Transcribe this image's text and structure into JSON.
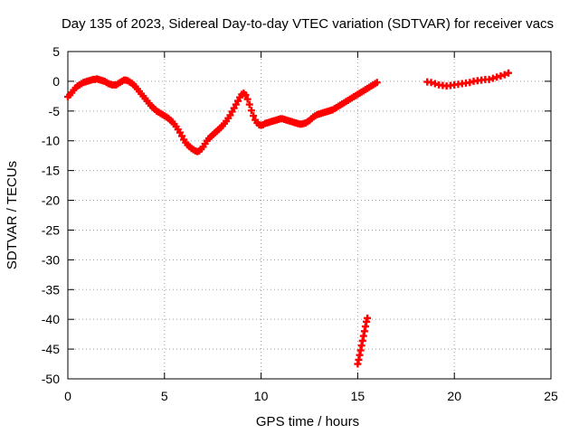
{
  "chart_data": {
    "type": "scatter",
    "title": "Day 135 of 2023, Sidereal Day-to-day VTEC variation (SDTVAR) for receiver vacs",
    "xlabel": "GPS time / hours",
    "ylabel": "SDTVAR / TECUs",
    "xlim": [
      0,
      25
    ],
    "ylim": [
      -50,
      5
    ],
    "xticks": [
      "0",
      "5",
      "10",
      "15",
      "20",
      "25"
    ],
    "yticks": [
      "5",
      "0",
      "-5",
      "-10",
      "-15",
      "-20",
      "-25",
      "-30",
      "-35",
      "-40",
      "-45",
      "-50"
    ],
    "grid": true,
    "marker": "plus",
    "series_color": "#ff0000",
    "series": [
      {
        "name": "SDTVAR",
        "points": [
          [
            0.0,
            -2.6
          ],
          [
            0.1,
            -2.3
          ],
          [
            0.2,
            -1.9
          ],
          [
            0.3,
            -1.5
          ],
          [
            0.4,
            -1.1
          ],
          [
            0.5,
            -0.8
          ],
          [
            0.6,
            -0.6
          ],
          [
            0.7,
            -0.4
          ],
          [
            0.8,
            -0.2
          ],
          [
            0.9,
            -0.1
          ],
          [
            1.0,
            0.0
          ],
          [
            1.1,
            0.1
          ],
          [
            1.2,
            0.2
          ],
          [
            1.3,
            0.3
          ],
          [
            1.4,
            0.3
          ],
          [
            1.5,
            0.4
          ],
          [
            1.6,
            0.3
          ],
          [
            1.7,
            0.2
          ],
          [
            1.8,
            0.1
          ],
          [
            1.9,
            0.0
          ],
          [
            2.0,
            -0.2
          ],
          [
            2.1,
            -0.4
          ],
          [
            2.2,
            -0.5
          ],
          [
            2.3,
            -0.6
          ],
          [
            2.4,
            -0.6
          ],
          [
            2.5,
            -0.6
          ],
          [
            2.6,
            -0.4
          ],
          [
            2.7,
            -0.2
          ],
          [
            2.8,
            0.0
          ],
          [
            2.9,
            0.2
          ],
          [
            3.0,
            0.2
          ],
          [
            3.1,
            0.1
          ],
          [
            3.2,
            -0.1
          ],
          [
            3.3,
            -0.3
          ],
          [
            3.4,
            -0.6
          ],
          [
            3.5,
            -0.9
          ],
          [
            3.6,
            -1.3
          ],
          [
            3.7,
            -1.7
          ],
          [
            3.8,
            -2.1
          ],
          [
            3.9,
            -2.5
          ],
          [
            4.0,
            -2.9
          ],
          [
            4.1,
            -3.3
          ],
          [
            4.2,
            -3.7
          ],
          [
            4.3,
            -4.1
          ],
          [
            4.4,
            -4.4
          ],
          [
            4.5,
            -4.7
          ],
          [
            4.6,
            -5.0
          ],
          [
            4.7,
            -5.2
          ],
          [
            4.8,
            -5.4
          ],
          [
            4.9,
            -5.6
          ],
          [
            5.0,
            -5.8
          ],
          [
            5.1,
            -6.0
          ],
          [
            5.2,
            -6.2
          ],
          [
            5.3,
            -6.5
          ],
          [
            5.4,
            -6.8
          ],
          [
            5.5,
            -7.2
          ],
          [
            5.6,
            -7.6
          ],
          [
            5.7,
            -8.1
          ],
          [
            5.8,
            -8.6
          ],
          [
            5.9,
            -9.2
          ],
          [
            6.0,
            -9.8
          ],
          [
            6.1,
            -10.3
          ],
          [
            6.2,
            -10.7
          ],
          [
            6.3,
            -11.0
          ],
          [
            6.4,
            -11.3
          ],
          [
            6.5,
            -11.5
          ],
          [
            6.6,
            -11.7
          ],
          [
            6.7,
            -11.8
          ],
          [
            6.8,
            -11.7
          ],
          [
            6.9,
            -11.4
          ],
          [
            7.0,
            -11.0
          ],
          [
            7.1,
            -10.5
          ],
          [
            7.2,
            -10.0
          ],
          [
            7.3,
            -9.6
          ],
          [
            7.4,
            -9.3
          ],
          [
            7.5,
            -9.0
          ],
          [
            7.6,
            -8.7
          ],
          [
            7.7,
            -8.4
          ],
          [
            7.8,
            -8.1
          ],
          [
            7.9,
            -7.8
          ],
          [
            8.0,
            -7.5
          ],
          [
            8.1,
            -7.1
          ],
          [
            8.2,
            -6.7
          ],
          [
            8.3,
            -6.2
          ],
          [
            8.4,
            -5.7
          ],
          [
            8.5,
            -5.1
          ],
          [
            8.6,
            -4.5
          ],
          [
            8.7,
            -3.9
          ],
          [
            8.8,
            -3.3
          ],
          [
            8.9,
            -2.7
          ],
          [
            9.0,
            -2.2
          ],
          [
            9.1,
            -2.0
          ],
          [
            9.2,
            -2.3
          ],
          [
            9.3,
            -3.0
          ],
          [
            9.4,
            -3.9
          ],
          [
            9.5,
            -4.9
          ],
          [
            9.6,
            -5.8
          ],
          [
            9.7,
            -6.5
          ],
          [
            9.8,
            -7.0
          ],
          [
            9.9,
            -7.3
          ],
          [
            10.0,
            -7.4
          ],
          [
            10.1,
            -7.3
          ],
          [
            10.2,
            -7.1
          ],
          [
            10.3,
            -7.0
          ],
          [
            10.4,
            -6.9
          ],
          [
            10.5,
            -6.8
          ],
          [
            10.6,
            -6.7
          ],
          [
            10.7,
            -6.6
          ],
          [
            10.8,
            -6.5
          ],
          [
            10.9,
            -6.4
          ],
          [
            11.0,
            -6.3
          ],
          [
            11.1,
            -6.3
          ],
          [
            11.2,
            -6.4
          ],
          [
            11.3,
            -6.5
          ],
          [
            11.4,
            -6.6
          ],
          [
            11.5,
            -6.7
          ],
          [
            11.6,
            -6.8
          ],
          [
            11.7,
            -6.9
          ],
          [
            11.8,
            -7.0
          ],
          [
            11.9,
            -7.1
          ],
          [
            12.0,
            -7.2
          ],
          [
            12.1,
            -7.2
          ],
          [
            12.2,
            -7.1
          ],
          [
            12.3,
            -7.0
          ],
          [
            12.4,
            -6.8
          ],
          [
            12.5,
            -6.6
          ],
          [
            12.6,
            -6.3
          ],
          [
            12.7,
            -6.0
          ],
          [
            12.8,
            -5.8
          ],
          [
            12.9,
            -5.6
          ],
          [
            13.0,
            -5.5
          ],
          [
            13.1,
            -5.4
          ],
          [
            13.2,
            -5.3
          ],
          [
            13.3,
            -5.2
          ],
          [
            13.4,
            -5.1
          ],
          [
            13.5,
            -5.0
          ],
          [
            13.6,
            -4.9
          ],
          [
            13.7,
            -4.8
          ],
          [
            13.8,
            -4.6
          ],
          [
            13.9,
            -4.4
          ],
          [
            14.0,
            -4.2
          ],
          [
            14.1,
            -4.0
          ],
          [
            14.2,
            -3.8
          ],
          [
            14.3,
            -3.6
          ],
          [
            14.4,
            -3.4
          ],
          [
            14.5,
            -3.2
          ],
          [
            14.6,
            -3.0
          ],
          [
            14.7,
            -2.8
          ],
          [
            14.8,
            -2.6
          ],
          [
            14.9,
            -2.4
          ],
          [
            15.0,
            -2.2
          ],
          [
            15.1,
            -2.0
          ],
          [
            15.2,
            -1.8
          ],
          [
            15.3,
            -1.6
          ],
          [
            15.4,
            -1.4
          ],
          [
            15.5,
            -1.2
          ],
          [
            15.6,
            -1.0
          ],
          [
            15.7,
            -0.8
          ],
          [
            15.8,
            -0.6
          ],
          [
            15.9,
            -0.4
          ],
          [
            16.0,
            -0.2
          ],
          [
            15.0,
            -47.5
          ],
          [
            15.05,
            -46.8
          ],
          [
            15.1,
            -46.0
          ],
          [
            15.15,
            -45.2
          ],
          [
            15.2,
            -44.4
          ],
          [
            15.25,
            -43.6
          ],
          [
            15.3,
            -42.8
          ],
          [
            15.35,
            -42.0
          ],
          [
            15.4,
            -41.2
          ],
          [
            15.45,
            -40.4
          ],
          [
            15.5,
            -39.8
          ],
          [
            18.6,
            -0.1
          ],
          [
            18.8,
            -0.2
          ],
          [
            19.0,
            -0.4
          ],
          [
            19.2,
            -0.6
          ],
          [
            19.4,
            -0.7
          ],
          [
            19.6,
            -0.8
          ],
          [
            19.8,
            -0.7
          ],
          [
            20.0,
            -0.6
          ],
          [
            20.2,
            -0.5
          ],
          [
            20.4,
            -0.4
          ],
          [
            20.6,
            -0.3
          ],
          [
            20.8,
            -0.2
          ],
          [
            21.0,
            0.0
          ],
          [
            21.2,
            0.1
          ],
          [
            21.4,
            0.2
          ],
          [
            21.6,
            0.3
          ],
          [
            21.8,
            0.3
          ],
          [
            22.0,
            0.5
          ],
          [
            22.2,
            0.7
          ],
          [
            22.4,
            0.9
          ],
          [
            22.6,
            1.1
          ],
          [
            22.8,
            1.4
          ]
        ]
      }
    ]
  }
}
